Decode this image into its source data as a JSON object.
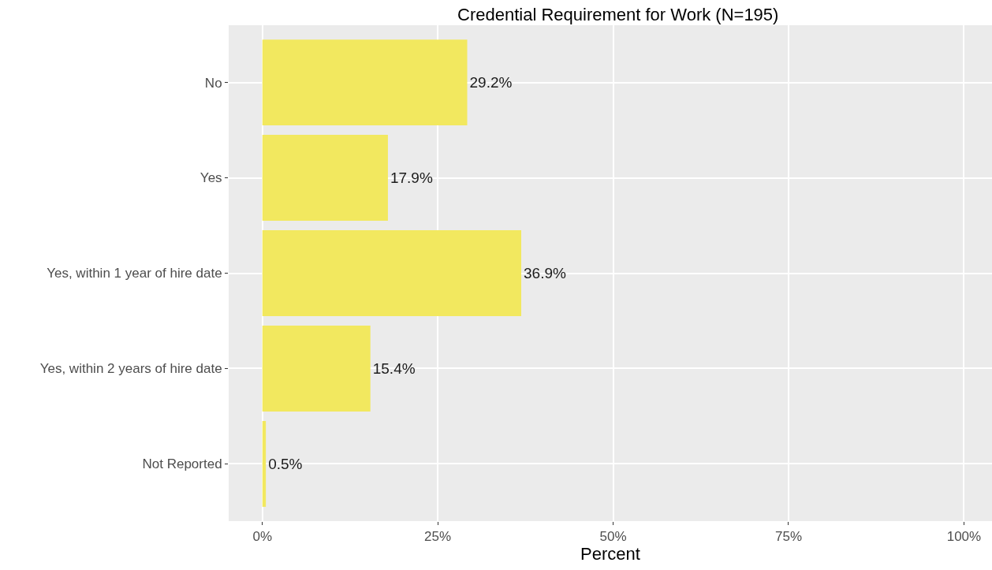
{
  "chart_data": {
    "type": "bar",
    "orientation": "horizontal",
    "title": "Credential Requirement for Work (N=195)",
    "xlabel": "Percent",
    "categories": [
      "No",
      "Yes",
      "Yes, within 1 year of hire date",
      "Yes, within 2 years of hire date",
      "Not Reported"
    ],
    "values": [
      29.2,
      17.9,
      36.9,
      15.4,
      0.5
    ],
    "value_labels": [
      "29.2%",
      "17.9%",
      "36.9%",
      "15.4%",
      "0.5%"
    ],
    "color": "#f2e85f",
    "xlim": [
      -4.8,
      104
    ],
    "xticks": [
      {
        "value": 0,
        "label": "0%"
      },
      {
        "value": 25,
        "label": "25%"
      },
      {
        "value": 50,
        "label": "50%"
      },
      {
        "value": 75,
        "label": "75%"
      },
      {
        "value": 100,
        "label": "100%"
      }
    ],
    "grid": true,
    "legend": false
  }
}
